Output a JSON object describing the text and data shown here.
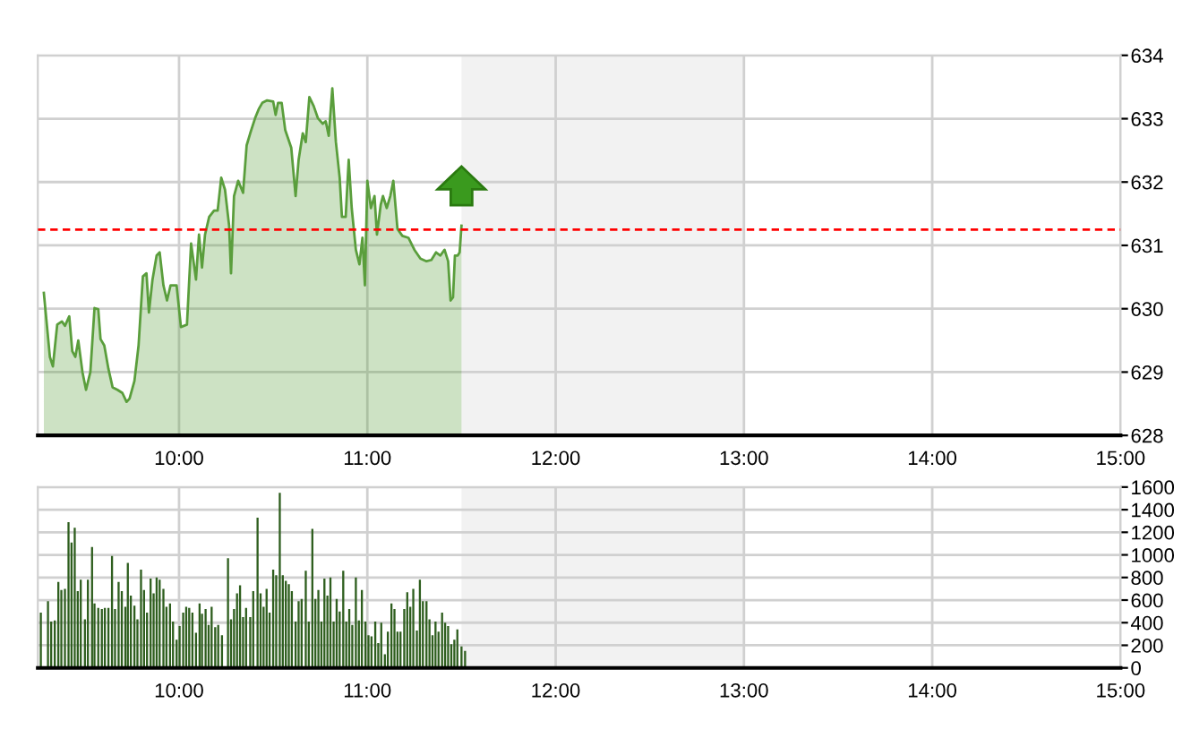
{
  "chart_data": [
    {
      "type": "area",
      "xlim": [
        9.25,
        15
      ],
      "ylim": [
        628,
        634
      ],
      "yticks": [
        628,
        629,
        630,
        631,
        632,
        633,
        634
      ],
      "xticks": [
        {
          "value": 10,
          "label": "10:00"
        },
        {
          "value": 11,
          "label": "11:00"
        },
        {
          "value": 12,
          "label": "12:00"
        },
        {
          "value": 13,
          "label": "13:00"
        },
        {
          "value": 14,
          "label": "14:00"
        },
        {
          "value": 15,
          "label": "15:00"
        }
      ],
      "grid": true,
      "ref_lines": [
        {
          "axis": "y",
          "value": 631.25,
          "color": "#ff0000",
          "line_style": "dashed"
        }
      ],
      "bands": [
        {
          "axis": "x",
          "from": 11.5,
          "to": 13,
          "color": "#f2f2f2"
        }
      ],
      "series": [
        {
          "color": "#5a9e3c",
          "x": [
            9.282,
            9.314,
            9.33,
            9.353,
            9.378,
            9.394,
            9.417,
            9.433,
            9.449,
            9.465,
            9.487,
            9.506,
            9.529,
            9.551,
            9.571,
            9.583,
            9.603,
            9.625,
            9.647,
            9.673,
            9.699,
            9.721,
            9.737,
            9.763,
            9.785,
            9.808,
            9.827,
            9.84,
            9.859,
            9.881,
            9.897,
            9.917,
            9.936,
            9.955,
            9.987,
            10.01,
            10.042,
            10.064,
            10.09,
            10.106,
            10.122,
            10.138,
            10.16,
            10.186,
            10.205,
            10.224,
            10.244,
            10.266,
            10.276,
            10.292,
            10.314,
            10.34,
            10.359,
            10.378,
            10.404,
            10.423,
            10.442,
            10.468,
            10.5,
            10.513,
            10.526,
            10.545,
            10.564,
            10.596,
            10.619,
            10.635,
            10.657,
            10.673,
            10.692,
            10.715,
            10.737,
            10.763,
            10.779,
            10.795,
            10.814,
            10.833,
            10.853,
            10.865,
            10.885,
            10.901,
            10.917,
            10.939,
            10.958,
            10.974,
            10.987,
            11.0,
            11.019,
            11.038,
            11.051,
            11.071,
            11.083,
            11.103,
            11.122,
            11.138,
            11.16,
            11.186,
            11.218,
            11.25,
            11.282,
            11.314,
            11.34,
            11.365,
            11.388,
            11.41,
            11.429,
            11.442,
            11.455,
            11.465,
            11.48,
            11.49,
            11.5
          ],
          "values": [
            630.25,
            629.24,
            629.09,
            629.75,
            629.8,
            629.73,
            629.88,
            629.33,
            629.24,
            629.5,
            629.0,
            628.72,
            629.0,
            630.01,
            629.99,
            629.52,
            629.42,
            629.05,
            628.76,
            628.72,
            628.67,
            628.53,
            628.58,
            628.86,
            629.42,
            630.51,
            630.56,
            629.94,
            630.46,
            630.84,
            630.89,
            630.37,
            630.13,
            630.37,
            630.37,
            629.71,
            629.75,
            631.03,
            630.46,
            631.17,
            630.65,
            631.17,
            631.45,
            631.55,
            631.55,
            632.07,
            631.88,
            631.31,
            630.56,
            631.78,
            632.02,
            631.83,
            632.58,
            632.77,
            633.01,
            633.15,
            633.25,
            633.29,
            633.27,
            633.06,
            633.25,
            633.25,
            632.82,
            632.54,
            631.78,
            632.35,
            632.77,
            632.63,
            633.34,
            633.2,
            633.01,
            632.92,
            632.96,
            632.73,
            633.48,
            632.63,
            632.07,
            631.45,
            631.45,
            632.35,
            631.59,
            630.93,
            630.7,
            631.12,
            630.37,
            632.02,
            631.59,
            631.78,
            631.17,
            631.64,
            631.78,
            631.59,
            631.78,
            632.02,
            631.26,
            631.15,
            631.12,
            630.93,
            630.79,
            630.75,
            630.77,
            630.89,
            630.84,
            630.93,
            630.75,
            630.13,
            630.18,
            630.84,
            630.84,
            630.89,
            631.31
          ]
        }
      ]
    },
    {
      "type": "bar",
      "xlim": [
        9.25,
        15
      ],
      "ylim": [
        0,
        1600
      ],
      "yticks": [
        0,
        200,
        400,
        600,
        800,
        1000,
        1200,
        1400,
        1600
      ],
      "xticks": [
        {
          "value": 10,
          "label": "10:00"
        },
        {
          "value": 11,
          "label": "11:00"
        },
        {
          "value": 12,
          "label": "12:00"
        },
        {
          "value": 13,
          "label": "13:00"
        },
        {
          "value": 14,
          "label": "14:00"
        },
        {
          "value": 15,
          "label": "15:00"
        }
      ],
      "grid": true,
      "bands": [
        {
          "axis": "x",
          "from": 11.5,
          "to": 13,
          "color": "#f2f2f2"
        }
      ],
      "series": [
        {
          "color": "#2e5e1e",
          "x": [
            9.266,
            9.304,
            9.321,
            9.34,
            9.359,
            9.375,
            9.394,
            9.413,
            9.429,
            9.446,
            9.462,
            9.478,
            9.5,
            9.516,
            9.538,
            9.551,
            9.571,
            9.59,
            9.606,
            9.625,
            9.644,
            9.66,
            9.679,
            9.696,
            9.715,
            9.728,
            9.744,
            9.763,
            9.779,
            9.798,
            9.814,
            9.83,
            9.849,
            9.865,
            9.881,
            9.897,
            9.917,
            9.933,
            9.952,
            9.968,
            9.987,
            10.003,
            10.022,
            10.038,
            10.054,
            10.071,
            10.09,
            10.109,
            10.122,
            10.141,
            10.157,
            10.173,
            10.192,
            10.208,
            10.228,
            10.26,
            10.276,
            10.292,
            10.308,
            10.324,
            10.34,
            10.356,
            10.378,
            10.394,
            10.417,
            10.433,
            10.449,
            10.465,
            10.481,
            10.5,
            10.516,
            10.535,
            10.551,
            10.567,
            10.583,
            10.599,
            10.619,
            10.635,
            10.651,
            10.673,
            10.689,
            10.708,
            10.724,
            10.74,
            10.756,
            10.772,
            10.788,
            10.804,
            10.821,
            10.837,
            10.853,
            10.872,
            10.888,
            10.904,
            10.92,
            10.939,
            10.955,
            10.971,
            10.99,
            11.006,
            11.022,
            11.042,
            11.058,
            11.074,
            11.093,
            11.109,
            11.128,
            11.144,
            11.16,
            11.176,
            11.196,
            11.212,
            11.228,
            11.244,
            11.263,
            11.279,
            11.295,
            11.314,
            11.33,
            11.346,
            11.362,
            11.378,
            11.397,
            11.413,
            11.429,
            11.446,
            11.462,
            11.478,
            11.5,
            11.519
          ],
          "values": [
            490,
            590,
            410,
            420,
            760,
            690,
            700,
            1290,
            1110,
            1240,
            680,
            780,
            430,
            780,
            1070,
            570,
            530,
            520,
            530,
            530,
            990,
            520,
            760,
            680,
            540,
            930,
            640,
            550,
            430,
            870,
            690,
            490,
            790,
            660,
            800,
            780,
            700,
            540,
            570,
            410,
            250,
            370,
            490,
            540,
            530,
            490,
            310,
            570,
            480,
            520,
            380,
            540,
            360,
            380,
            290,
            970,
            430,
            520,
            660,
            730,
            450,
            530,
            450,
            680,
            1330,
            660,
            540,
            700,
            490,
            870,
            820,
            1550,
            820,
            770,
            740,
            680,
            410,
            590,
            610,
            860,
            410,
            1230,
            610,
            690,
            410,
            790,
            640,
            800,
            410,
            610,
            500,
            860,
            410,
            520,
            380,
            800,
            420,
            690,
            410,
            290,
            280,
            410,
            220,
            400,
            120,
            320,
            570,
            520,
            320,
            320,
            520,
            670,
            540,
            700,
            330,
            780,
            590,
            590,
            430,
            290,
            410,
            320,
            490,
            400,
            370,
            210,
            250,
            340,
            190,
            150
          ]
        }
      ]
    }
  ]
}
